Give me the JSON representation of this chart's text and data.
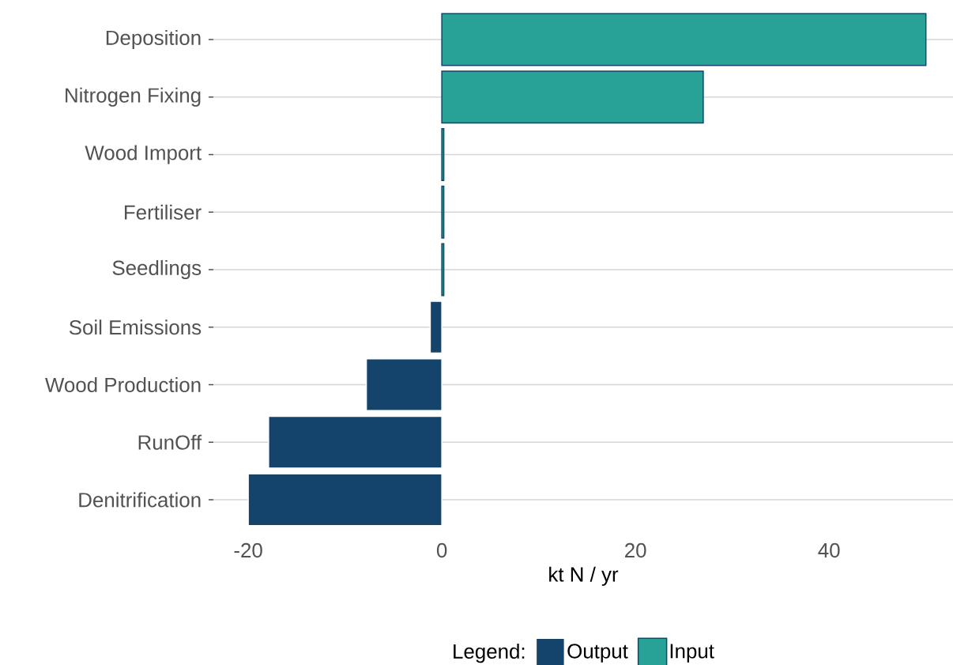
{
  "chart_data": {
    "type": "bar",
    "orientation": "horizontal",
    "xlabel": "kt N / yr",
    "legend_title": "Legend:",
    "categories": [
      "Deposition",
      "Nitrogen Fixing",
      "Wood Import",
      "Fertiliser",
      "Seedlings",
      "Soil Emissions",
      "Wood Production",
      "RunOff",
      "Denitrification"
    ],
    "series": [
      {
        "name": "Output",
        "color": "#14446c",
        "values": [
          null,
          null,
          null,
          null,
          null,
          -1.2,
          -7.8,
          -17.9,
          -20
        ]
      },
      {
        "name": "Input",
        "color": "#28a197",
        "values": [
          50,
          27,
          0.2,
          0.2,
          0.2,
          null,
          null,
          null,
          null
        ]
      }
    ],
    "xlim": [
      -23.6,
      52.8
    ],
    "xticks": [
      -20,
      0,
      20,
      40
    ],
    "grid": "y",
    "legend": "bottom"
  }
}
